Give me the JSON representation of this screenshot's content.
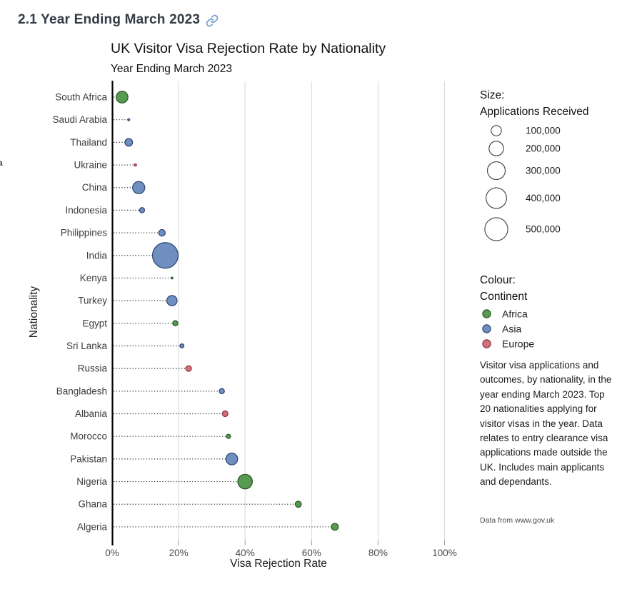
{
  "page": {
    "heading": "2.1 Year Ending March 2023",
    "edge_artifact": "a"
  },
  "chart_data": {
    "type": "scatter",
    "subtype": "bubble-lollipop",
    "title": "UK Visitor Visa Rejection Rate by Nationality",
    "subtitle": "Year Ending March 2023",
    "xlabel": "Visa Rejection Rate",
    "ylabel": "Nationality",
    "x_tick_labels": [
      "0%",
      "20%",
      "40%",
      "60%",
      "80%",
      "100%"
    ],
    "x_ticks_pct": [
      0,
      20,
      40,
      60,
      80,
      100
    ],
    "xlim_pct": [
      0,
      105
    ],
    "grid": "vertical-only",
    "size_encoding": "bubble area proportional to applications received",
    "colour_encoding": "continent",
    "points": [
      {
        "nationality": "South Africa",
        "continent": "Africa",
        "rejection_rate_pct": 3,
        "applications_approx": 130000
      },
      {
        "nationality": "Saudi Arabia",
        "continent": "Asia",
        "rejection_rate_pct": 5,
        "applications_approx": 4000
      },
      {
        "nationality": "Thailand",
        "continent": "Asia",
        "rejection_rate_pct": 5,
        "applications_approx": 55000
      },
      {
        "nationality": "Ukraine",
        "continent": "Europe",
        "rejection_rate_pct": 7,
        "applications_approx": 5000
      },
      {
        "nationality": "China",
        "continent": "Asia",
        "rejection_rate_pct": 8,
        "applications_approx": 140000
      },
      {
        "nationality": "Indonesia",
        "continent": "Asia",
        "rejection_rate_pct": 9,
        "applications_approx": 25000
      },
      {
        "nationality": "Philippines",
        "continent": "Asia",
        "rejection_rate_pct": 15,
        "applications_approx": 40000
      },
      {
        "nationality": "India",
        "continent": "Asia",
        "rejection_rate_pct": 16,
        "applications_approx": 620000
      },
      {
        "nationality": "Kenya",
        "continent": "Africa",
        "rejection_rate_pct": 18,
        "applications_approx": 3000
      },
      {
        "nationality": "Turkey",
        "continent": "Asia",
        "rejection_rate_pct": 18,
        "applications_approx": 100000
      },
      {
        "nationality": "Egypt",
        "continent": "Africa",
        "rejection_rate_pct": 19,
        "applications_approx": 25000
      },
      {
        "nationality": "Sri Lanka",
        "continent": "Asia",
        "rejection_rate_pct": 21,
        "applications_approx": 15000
      },
      {
        "nationality": "Russia",
        "continent": "Europe",
        "rejection_rate_pct": 23,
        "applications_approx": 30000
      },
      {
        "nationality": "Bangladesh",
        "continent": "Asia",
        "rejection_rate_pct": 33,
        "applications_approx": 25000
      },
      {
        "nationality": "Albania",
        "continent": "Europe",
        "rejection_rate_pct": 34,
        "applications_approx": 30000
      },
      {
        "nationality": "Morocco",
        "continent": "Africa",
        "rejection_rate_pct": 35,
        "applications_approx": 17000
      },
      {
        "nationality": "Pakistan",
        "continent": "Asia",
        "rejection_rate_pct": 36,
        "applications_approx": 130000
      },
      {
        "nationality": "Nigeria",
        "continent": "Africa",
        "rejection_rate_pct": 40,
        "applications_approx": 200000
      },
      {
        "nationality": "Ghana",
        "continent": "Africa",
        "rejection_rate_pct": 56,
        "applications_approx": 35000
      },
      {
        "nationality": "Algeria",
        "continent": "Africa",
        "rejection_rate_pct": 67,
        "applications_approx": 45000
      }
    ]
  },
  "legend_size": {
    "title_line1": "Size:",
    "title_line2": "Applications Received",
    "entries": [
      {
        "label": "100,000",
        "value": 100000
      },
      {
        "label": "200,000",
        "value": 200000
      },
      {
        "label": "300,000",
        "value": 300000
      },
      {
        "label": "400,000",
        "value": 400000
      },
      {
        "label": "500,000",
        "value": 500000
      }
    ]
  },
  "legend_colour": {
    "title_line1": "Colour:",
    "title_line2": "Continent",
    "entries": [
      {
        "label": "Africa",
        "color": "#579b51",
        "border": "#2d5a28"
      },
      {
        "label": "Asia",
        "color": "#6f8fc0",
        "border": "#2f4a75"
      },
      {
        "label": "Europe",
        "color": "#d4707c",
        "border": "#8e3540"
      }
    ]
  },
  "annotation": {
    "body": "Visitor visa applications and outcomes, by nationality, in the year ending March 2023. Top 20 nationalities applying for visitor visas in the year. Data relates to entry clearance visa applications made outside the UK. Includes main applicants and dependants.",
    "source": "Data from www.gov.uk"
  },
  "colors": {
    "africa": "#579b51",
    "africa_border": "#2d5a28",
    "asia": "#6f8fc0",
    "asia_border": "#2f4a75",
    "europe": "#d4707c",
    "europe_border": "#8e3540",
    "grid": "#d8d8d8",
    "axis_line": "#000000",
    "tick": "#9a9a9a",
    "tick_label": "#4a4a4a",
    "category_label": "#3c3c3c",
    "leader_line": "#2f2f2f",
    "heading_text": "#333b44",
    "link_icon": "#7b9fd4",
    "legend_circle_border": "#3f3f3f"
  }
}
